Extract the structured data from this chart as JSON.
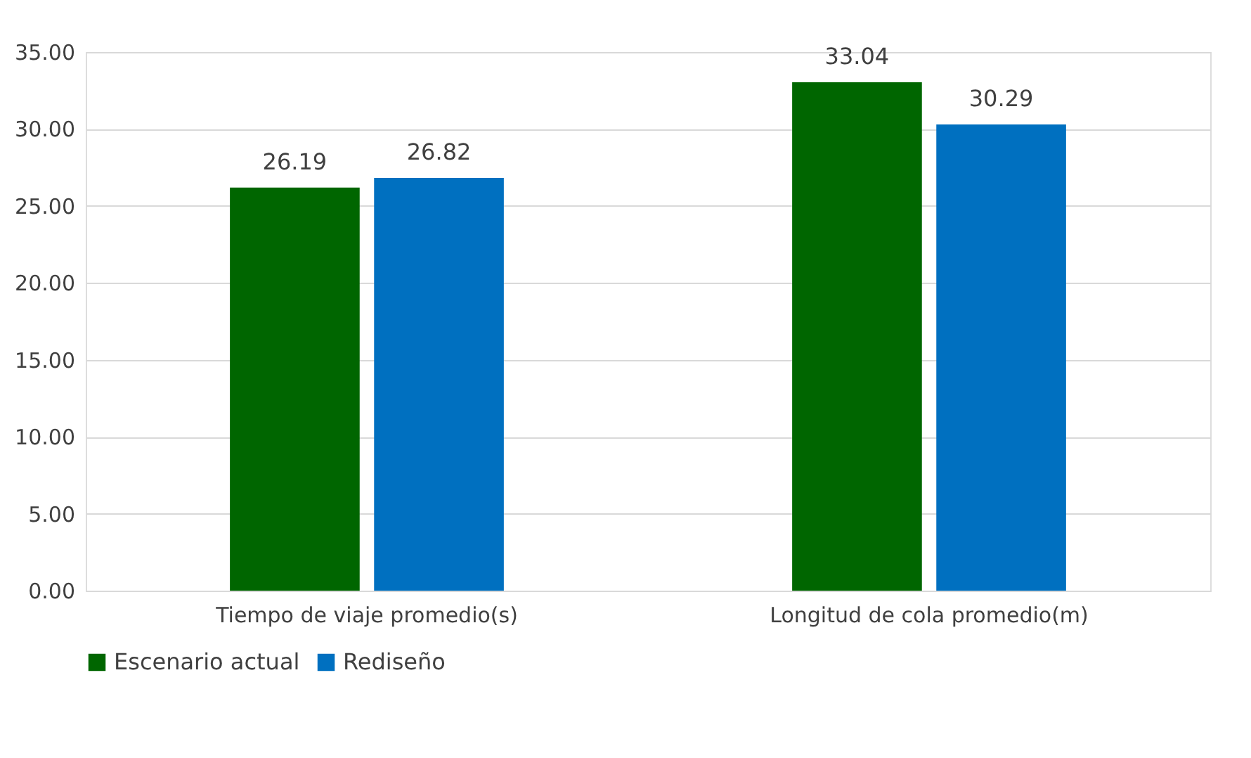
{
  "chart_data": {
    "type": "bar",
    "categories": [
      "Tiempo de viaje promedio(s)",
      "Longitud de cola promedio(m)"
    ],
    "series": [
      {
        "name": "Escenario actual",
        "color": "#006600",
        "values": [
          26.19,
          33.04
        ]
      },
      {
        "name": "Rediseño",
        "color": "#0070c0",
        "values": [
          26.82,
          30.29
        ]
      }
    ],
    "ylim": [
      0,
      35
    ],
    "yticks": [
      {
        "value": 0,
        "label": "0.00"
      },
      {
        "value": 5,
        "label": "5.00"
      },
      {
        "value": 10,
        "label": "10.00"
      },
      {
        "value": 15,
        "label": "15.00"
      },
      {
        "value": 20,
        "label": "20.00"
      },
      {
        "value": 25,
        "label": "25.00"
      },
      {
        "value": 30,
        "label": "30.00"
      },
      {
        "value": 35,
        "label": "35.00"
      }
    ],
    "grid": "y",
    "legend": "bottom",
    "data_labels": true
  }
}
